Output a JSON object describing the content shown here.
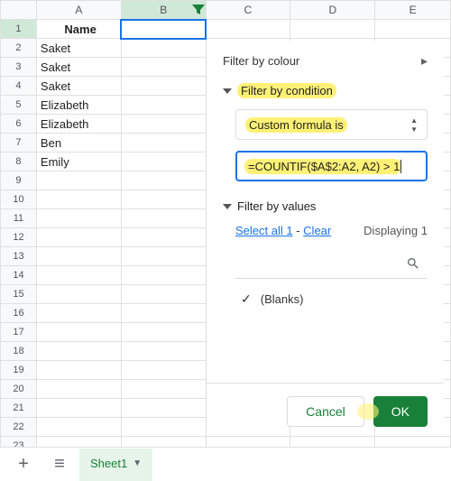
{
  "columns": [
    "A",
    "B",
    "C",
    "D",
    "E"
  ],
  "active_column_index": 1,
  "active_row": 1,
  "header_row": {
    "a": "Name"
  },
  "data_rows": [
    "Saket",
    "Saket",
    "Saket",
    "Elizabeth",
    "Elizabeth",
    "Ben",
    "Emily"
  ],
  "total_rows": 23,
  "filter_panel": {
    "by_colour_label": "Filter by colour",
    "by_condition_label": "Filter by condition",
    "condition_dropdown": "Custom formula is",
    "formula_value": "=COUNTIF($A$2:A2, A2) > 1",
    "by_values_label": "Filter by values",
    "select_all_label": "Select all 1",
    "clear_label": "Clear",
    "displaying_label": "Displaying 1",
    "blanks_label": "(Blanks)"
  },
  "buttons": {
    "cancel": "Cancel",
    "ok": "OK"
  },
  "sheet_tab": "Sheet1",
  "colors": {
    "primary_green": "#188038",
    "link_blue": "#1a73e8",
    "highlight_yellow": "#fff176",
    "active_header_bg": "#d0e8d8"
  }
}
